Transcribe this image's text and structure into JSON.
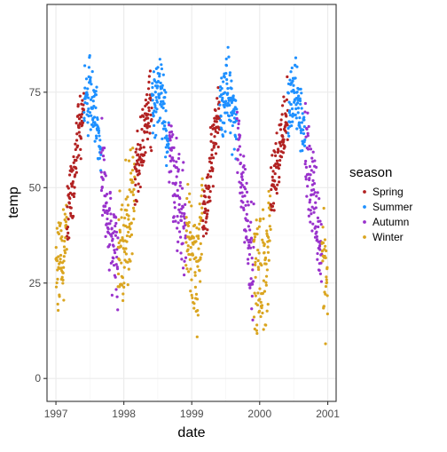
{
  "chart_data": {
    "type": "scatter",
    "xlabel": "date",
    "ylabel": "temp",
    "xlim": [
      "1996-11-14",
      "2001-02-15"
    ],
    "ylim": [
      -6,
      98
    ],
    "x_ticks": [
      "1997-01-01",
      "1998-01-01",
      "1999-01-01",
      "2000-01-01",
      "2001-01-01"
    ],
    "x_tick_labels": [
      "1997",
      "1998",
      "1999",
      "2000",
      "2001"
    ],
    "y_ticks": [
      0,
      25,
      50,
      75
    ],
    "y_tick_labels": [
      "0",
      "25",
      "50",
      "75"
    ],
    "grid": true,
    "legend_position": "right",
    "legend_title": "season",
    "series": [
      {
        "name": "Spring",
        "color": "#B22222",
        "months": [
          3,
          4,
          5
        ]
      },
      {
        "name": "Summer",
        "color": "#1E90FF",
        "months": [
          6,
          7,
          8
        ]
      },
      {
        "name": "Autumn",
        "color": "#9932CC",
        "months": [
          9,
          10,
          11
        ]
      },
      {
        "name": "Winter",
        "color": "#DAA520",
        "months": [
          12,
          1,
          2
        ]
      }
    ],
    "daily_temperature_profile": [
      {
        "date": "1997-01-01",
        "temp": 30
      },
      {
        "date": "1997-02-15",
        "temp": 35
      },
      {
        "date": "1997-03-20",
        "temp": 48
      },
      {
        "date": "1997-04-25",
        "temp": 62
      },
      {
        "date": "1997-05-31",
        "temp": 72
      },
      {
        "date": "1997-07-05",
        "temp": 75
      },
      {
        "date": "1997-08-10",
        "temp": 68
      },
      {
        "date": "1997-09-15",
        "temp": 48
      },
      {
        "date": "1997-10-20",
        "temp": 37
      },
      {
        "date": "1997-11-25",
        "temp": 33
      },
      {
        "date": "1997-12-31",
        "temp": 35
      },
      {
        "date": "1998-02-10",
        "temp": 45
      },
      {
        "date": "1998-03-20",
        "temp": 57
      },
      {
        "date": "1998-05-01",
        "temp": 68
      },
      {
        "date": "1998-06-10",
        "temp": 74
      },
      {
        "date": "1998-07-20",
        "temp": 73
      },
      {
        "date": "1998-08-31",
        "temp": 62
      },
      {
        "date": "1998-10-10",
        "temp": 50
      },
      {
        "date": "1998-11-20",
        "temp": 40
      },
      {
        "date": "1998-12-31",
        "temp": 34
      },
      {
        "date": "1999-01-31",
        "temp": 31
      },
      {
        "date": "1999-03-10",
        "temp": 42
      },
      {
        "date": "1999-04-20",
        "temp": 58
      },
      {
        "date": "1999-05-31",
        "temp": 70
      },
      {
        "date": "1999-07-10",
        "temp": 76
      },
      {
        "date": "1999-08-20",
        "temp": 68
      },
      {
        "date": "1999-09-30",
        "temp": 52
      },
      {
        "date": "1999-11-10",
        "temp": 35
      },
      {
        "date": "1999-12-20",
        "temp": 25
      },
      {
        "date": "2000-01-31",
        "temp": 28
      },
      {
        "date": "2000-03-10",
        "temp": 50
      },
      {
        "date": "2000-04-20",
        "temp": 62
      },
      {
        "date": "2000-05-31",
        "temp": 70
      },
      {
        "date": "2000-07-10",
        "temp": 75
      },
      {
        "date": "2000-08-20",
        "temp": 66
      },
      {
        "date": "2000-09-30",
        "temp": 52
      },
      {
        "date": "2000-11-10",
        "temp": 38
      },
      {
        "date": "2000-12-31",
        "temp": 25
      }
    ]
  }
}
